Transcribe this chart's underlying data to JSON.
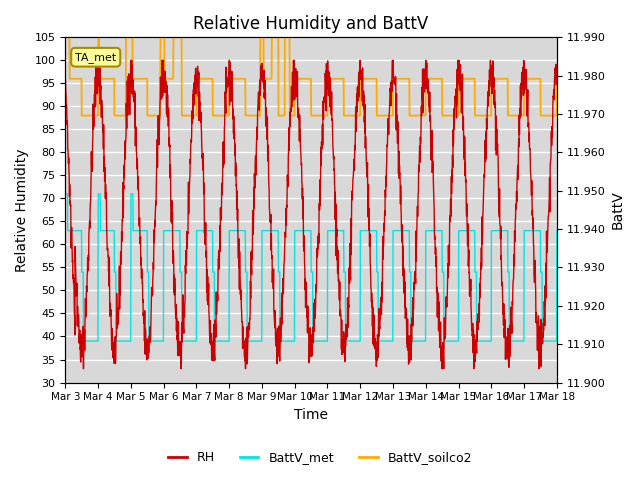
{
  "title": "Relative Humidity and BattV",
  "xlabel": "Time",
  "ylabel_left": "Relative Humidity",
  "ylabel_right": "BattV",
  "ylim_left": [
    30,
    105
  ],
  "ylim_right": [
    11.9,
    11.99
  ],
  "yticks_left": [
    30,
    35,
    40,
    45,
    50,
    55,
    60,
    65,
    70,
    75,
    80,
    85,
    90,
    95,
    100,
    105
  ],
  "yticks_right": [
    11.9,
    11.91,
    11.92,
    11.93,
    11.94,
    11.95,
    11.96,
    11.97,
    11.98,
    11.99
  ],
  "xtick_labels": [
    "Mar 3",
    "Mar 4",
    "Mar 5",
    "Mar 6",
    "Mar 7",
    "Mar 8",
    "Mar 9",
    "Mar 10",
    "Mar 11",
    "Mar 12",
    "Mar 13",
    "Mar 14",
    "Mar 15",
    "Mar 16",
    "Mar 17",
    "Mar 18"
  ],
  "color_rh": "#cc0000",
  "color_battv_met": "#00e5e5",
  "color_battv_soilco2": "#ffaa00",
  "annotation_label": "TA_met",
  "bg_color": "#d8d8d8",
  "grid_color": "white",
  "title_fontsize": 12,
  "axis_fontsize": 10,
  "tick_fontsize": 8,
  "xtick_fontsize": 7.5,
  "legend_fontsize": 9
}
